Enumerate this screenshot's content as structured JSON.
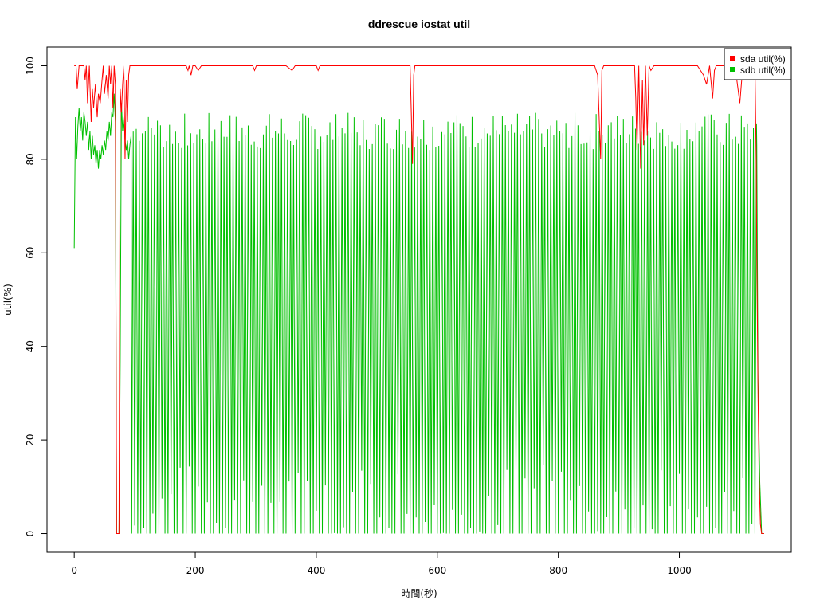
{
  "chart_data": {
    "type": "line",
    "title": "ddrescue iostat util",
    "xlabel": "時間(秒)",
    "ylabel": "util(%)",
    "xlim": [
      -45,
      1185
    ],
    "ylim": [
      -4,
      104
    ],
    "xticks": [
      0,
      200,
      400,
      600,
      800,
      1000
    ],
    "yticks": [
      0,
      20,
      40,
      60,
      80,
      100
    ],
    "grid": false,
    "legend_position": "top-right",
    "series": [
      {
        "name": "sda util(%)",
        "color": "#ff0000",
        "description_x_range": [
          0,
          1140
        ],
        "x": [
          0,
          3,
          5,
          8,
          12,
          16,
          18,
          20,
          22,
          25,
          28,
          30,
          32,
          35,
          38,
          40,
          43,
          46,
          48,
          50,
          53,
          56,
          58,
          60,
          62,
          64,
          66,
          68,
          70,
          72,
          74,
          76,
          78,
          80,
          82,
          84,
          86,
          88,
          90,
          92,
          94,
          100,
          185,
          188,
          190,
          193,
          196,
          200,
          205,
          210,
          260,
          295,
          298,
          301,
          350,
          360,
          365,
          400,
          403,
          406,
          430,
          500,
          520,
          555,
          557,
          559,
          561,
          563,
          600,
          690,
          700,
          800,
          860,
          865,
          868,
          870,
          872,
          875,
          880,
          920,
          926,
          928,
          930,
          933,
          936,
          939,
          941,
          944,
          947,
          950,
          953,
          958,
          1000,
          1030,
          1040,
          1045,
          1050,
          1055,
          1058,
          1061,
          1090,
          1095,
          1100,
          1105,
          1110,
          1115,
          1120,
          1125,
          1127,
          1128,
          1130,
          1132,
          1134,
          1136,
          1138,
          1140
        ],
        "y": [
          100,
          100,
          95,
          100,
          100,
          100,
          97,
          100,
          92,
          100,
          88,
          95,
          91,
          96,
          89,
          94,
          92,
          97,
          100,
          94,
          98,
          93,
          100,
          96,
          100,
          91,
          100,
          96,
          0,
          0,
          0,
          95,
          90,
          96,
          100,
          80,
          97,
          88,
          98,
          100,
          100,
          100,
          100,
          99,
          100,
          98,
          100,
          100,
          99,
          100,
          100,
          100,
          99,
          100,
          100,
          99,
          100,
          100,
          99,
          100,
          100,
          100,
          100,
          100,
          90,
          79,
          98,
          100,
          100,
          100,
          100,
          100,
          100,
          98,
          87,
          80,
          99,
          100,
          100,
          100,
          100,
          93,
          82,
          100,
          78,
          97,
          83,
          100,
          85,
          100,
          99,
          100,
          100,
          100,
          98,
          96,
          100,
          93,
          99,
          100,
          100,
          97,
          92,
          100,
          100,
          100,
          100,
          100,
          80,
          60,
          30,
          11,
          2,
          0,
          0,
          0
        ]
      },
      {
        "name": "sdb util(%)",
        "color": "#00c000",
        "x": [
          0,
          2,
          4,
          6,
          8,
          10,
          12,
          14,
          16,
          18,
          20,
          22,
          24,
          26,
          28,
          30,
          32,
          34,
          36,
          38,
          40,
          42,
          44,
          46,
          48,
          50,
          52,
          54,
          56,
          58,
          60,
          62,
          64,
          66,
          68,
          70,
          72,
          74,
          76,
          78,
          80,
          82,
          84,
          86,
          88,
          90,
          92,
          94
        ],
        "y": [
          61,
          89,
          80,
          87,
          91,
          86,
          89,
          84,
          90,
          88,
          85,
          88,
          82,
          86,
          80,
          85,
          81,
          83,
          79,
          82,
          78,
          82,
          80,
          83,
          81,
          84,
          82,
          86,
          84,
          88,
          85,
          90,
          89,
          94,
          88,
          0,
          0,
          0,
          37,
          92,
          86,
          89,
          84,
          82,
          84,
          80,
          83,
          85
        ],
        "oscillation": {
          "x_start": 95,
          "x_end": 1128,
          "period": 5.0,
          "low": 0,
          "high_min": 82,
          "high_max": 90,
          "tail_x": [
            1128,
            1130,
            1133,
            1136,
            1140
          ],
          "tail_y": [
            83,
            33,
            11,
            0,
            0
          ]
        }
      }
    ],
    "x_axis_labels": [
      "0",
      "200",
      "400",
      "600",
      "800",
      "1000"
    ],
    "y_axis_labels": [
      "0",
      "20",
      "40",
      "60",
      "80",
      "100"
    ]
  }
}
